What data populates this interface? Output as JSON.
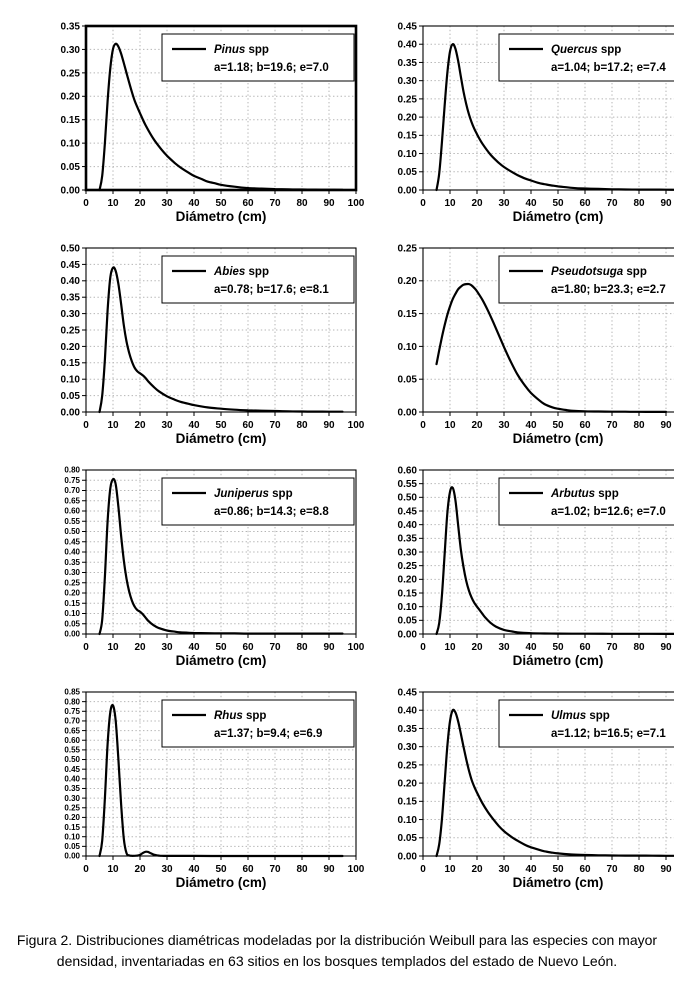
{
  "figure": {
    "caption": "Figura 2. Distribuciones diamétricas modeladas por la distribución Weibull para las especies con mayor densidad, inventariadas en 63 sitios en los bosques templados del estado de Nuevo León."
  },
  "chart_data": [
    {
      "type": "line",
      "species": "Pinus",
      "legend_suffix": "spp",
      "params": "a=1.18; b=19.6; e=7.0",
      "xlabel": "Diámetro (cm)",
      "ylabel": "",
      "xlim": [
        0,
        100
      ],
      "xtick_step": 10,
      "ylim": [
        0,
        0.35
      ],
      "ytick_step": 0.05,
      "grid": "dotted",
      "legend_position": "upper-right",
      "line_color": "#000000",
      "frame": "thick",
      "points": [
        [
          5,
          0
        ],
        [
          6,
          0.03
        ],
        [
          7,
          0.1
        ],
        [
          8,
          0.19
        ],
        [
          9,
          0.26
        ],
        [
          10,
          0.301
        ],
        [
          11,
          0.312
        ],
        [
          12,
          0.306
        ],
        [
          13,
          0.291
        ],
        [
          14,
          0.271
        ],
        [
          15,
          0.25
        ],
        [
          16,
          0.229
        ],
        [
          17,
          0.209
        ],
        [
          18,
          0.191
        ],
        [
          19,
          0.177
        ],
        [
          20,
          0.164
        ],
        [
          22,
          0.139
        ],
        [
          25,
          0.109
        ],
        [
          28,
          0.086
        ],
        [
          30,
          0.073
        ],
        [
          33,
          0.057
        ],
        [
          35,
          0.048
        ],
        [
          38,
          0.037
        ],
        [
          40,
          0.03
        ],
        [
          43,
          0.023
        ],
        [
          45,
          0.018
        ],
        [
          48,
          0.014
        ],
        [
          50,
          0.011
        ],
        [
          55,
          0.007
        ],
        [
          60,
          0.004
        ],
        [
          65,
          0.003
        ],
        [
          70,
          0.002
        ],
        [
          75,
          0.0015
        ],
        [
          80,
          0.001
        ],
        [
          85,
          0.0008
        ],
        [
          90,
          0.0006
        ],
        [
          95,
          0.0005
        ]
      ]
    },
    {
      "type": "line",
      "species": "Quercus",
      "legend_suffix": "spp",
      "params": "a=1.04; b=17.2; e=7.4",
      "xlabel": "Diámetro (cm)",
      "ylabel": "",
      "xlim": [
        0,
        100
      ],
      "xtick_step": 10,
      "ylim": [
        0,
        0.45
      ],
      "ytick_step": 0.05,
      "grid": "dotted",
      "legend_position": "upper-right",
      "line_color": "#000000",
      "frame": "thin",
      "points": [
        [
          5,
          0
        ],
        [
          6,
          0.045
        ],
        [
          7,
          0.13
        ],
        [
          8,
          0.23
        ],
        [
          9,
          0.32
        ],
        [
          10,
          0.38
        ],
        [
          11,
          0.4
        ],
        [
          12,
          0.388
        ],
        [
          13,
          0.355
        ],
        [
          14,
          0.312
        ],
        [
          15,
          0.27
        ],
        [
          16,
          0.236
        ],
        [
          17,
          0.208
        ],
        [
          18,
          0.186
        ],
        [
          19,
          0.168
        ],
        [
          20,
          0.153
        ],
        [
          22,
          0.127
        ],
        [
          25,
          0.097
        ],
        [
          28,
          0.075
        ],
        [
          30,
          0.063
        ],
        [
          33,
          0.049
        ],
        [
          35,
          0.041
        ],
        [
          38,
          0.031
        ],
        [
          40,
          0.026
        ],
        [
          43,
          0.019
        ],
        [
          45,
          0.016
        ],
        [
          48,
          0.012
        ],
        [
          50,
          0.01
        ],
        [
          55,
          0.006
        ],
        [
          60,
          0.004
        ],
        [
          65,
          0.003
        ],
        [
          70,
          0.002
        ],
        [
          75,
          0.0015
        ],
        [
          80,
          0.001
        ],
        [
          85,
          0.001
        ],
        [
          90,
          0.0008
        ],
        [
          95,
          0.0006
        ]
      ]
    },
    {
      "type": "line",
      "species": "Abies",
      "legend_suffix": "spp",
      "params": "a=0.78; b=17.6; e=8.1",
      "xlabel": "Diámetro (cm)",
      "ylabel": "",
      "xlim": [
        0,
        100
      ],
      "xtick_step": 10,
      "ylim": [
        0,
        0.5
      ],
      "ytick_step": 0.05,
      "grid": "dotted",
      "legend_position": "upper-right",
      "line_color": "#000000",
      "frame": "thin",
      "points": [
        [
          5,
          0
        ],
        [
          6,
          0.05
        ],
        [
          7,
          0.16
        ],
        [
          8,
          0.31
        ],
        [
          9,
          0.41
        ],
        [
          10,
          0.44
        ],
        [
          11,
          0.43
        ],
        [
          12,
          0.39
        ],
        [
          13,
          0.33
        ],
        [
          14,
          0.265
        ],
        [
          15,
          0.215
        ],
        [
          16,
          0.18
        ],
        [
          17,
          0.154
        ],
        [
          18,
          0.135
        ],
        [
          19,
          0.124
        ],
        [
          20,
          0.118
        ],
        [
          21,
          0.112
        ],
        [
          22,
          0.104
        ],
        [
          23,
          0.094
        ],
        [
          25,
          0.077
        ],
        [
          27,
          0.063
        ],
        [
          30,
          0.048
        ],
        [
          33,
          0.037
        ],
        [
          35,
          0.031
        ],
        [
          38,
          0.025
        ],
        [
          40,
          0.021
        ],
        [
          45,
          0.014
        ],
        [
          50,
          0.01
        ],
        [
          55,
          0.007
        ],
        [
          60,
          0.005
        ],
        [
          65,
          0.004
        ],
        [
          70,
          0.003
        ],
        [
          75,
          0.002
        ],
        [
          80,
          0.0015
        ],
        [
          85,
          0.0012
        ],
        [
          90,
          0.001
        ],
        [
          95,
          0.0008
        ]
      ]
    },
    {
      "type": "line",
      "species": "Pseudotsuga",
      "legend_suffix": "spp",
      "params": "a=1.80; b=23.3; e=2.7",
      "xlabel": "Diámetro (cm)",
      "ylabel": "",
      "xlim": [
        0,
        100
      ],
      "xtick_step": 10,
      "ylim": [
        0,
        0.25
      ],
      "ytick_step": 0.05,
      "grid": "dotted",
      "legend_position": "upper-right",
      "line_color": "#000000",
      "frame": "thin",
      "points": [
        [
          5,
          0.073
        ],
        [
          6,
          0.094
        ],
        [
          7,
          0.114
        ],
        [
          8,
          0.132
        ],
        [
          9,
          0.148
        ],
        [
          10,
          0.161
        ],
        [
          11,
          0.172
        ],
        [
          12,
          0.18
        ],
        [
          13,
          0.187
        ],
        [
          14,
          0.191
        ],
        [
          15,
          0.194
        ],
        [
          16,
          0.195
        ],
        [
          17,
          0.195
        ],
        [
          18,
          0.193
        ],
        [
          19,
          0.189
        ],
        [
          20,
          0.184
        ],
        [
          22,
          0.171
        ],
        [
          24,
          0.155
        ],
        [
          26,
          0.137
        ],
        [
          28,
          0.118
        ],
        [
          30,
          0.099
        ],
        [
          32,
          0.081
        ],
        [
          35,
          0.057
        ],
        [
          38,
          0.039
        ],
        [
          40,
          0.029
        ],
        [
          43,
          0.018
        ],
        [
          45,
          0.012
        ],
        [
          48,
          0.007
        ],
        [
          50,
          0.005
        ],
        [
          53,
          0.003
        ],
        [
          55,
          0.002
        ],
        [
          60,
          0.001
        ],
        [
          65,
          0.0007
        ],
        [
          70,
          0.0005
        ],
        [
          75,
          0.0004
        ],
        [
          80,
          0.0003
        ],
        [
          85,
          0.0002
        ],
        [
          90,
          0.0002
        ]
      ]
    },
    {
      "type": "line",
      "species": "Juniperus",
      "legend_suffix": "spp",
      "params": "a=0.86; b=14.3; e=8.8",
      "xlabel": "Diámetro (cm)",
      "ylabel": "",
      "xlim": [
        0,
        100
      ],
      "xtick_step": 10,
      "ylim": [
        0,
        0.8
      ],
      "ytick_step": 0.05,
      "grid": "dotted",
      "legend_position": "upper-right",
      "line_color": "#000000",
      "frame": "thin",
      "points": [
        [
          5,
          0
        ],
        [
          6,
          0.07
        ],
        [
          7,
          0.28
        ],
        [
          8,
          0.55
        ],
        [
          9,
          0.71
        ],
        [
          10,
          0.755
        ],
        [
          11,
          0.73
        ],
        [
          12,
          0.62
        ],
        [
          13,
          0.48
        ],
        [
          14,
          0.36
        ],
        [
          15,
          0.27
        ],
        [
          16,
          0.207
        ],
        [
          17,
          0.163
        ],
        [
          18,
          0.134
        ],
        [
          19,
          0.117
        ],
        [
          20,
          0.109
        ],
        [
          21,
          0.097
        ],
        [
          22,
          0.081
        ],
        [
          23,
          0.065
        ],
        [
          25,
          0.043
        ],
        [
          27,
          0.029
        ],
        [
          30,
          0.017
        ],
        [
          33,
          0.011
        ],
        [
          35,
          0.008
        ],
        [
          40,
          0.005
        ],
        [
          45,
          0.004
        ],
        [
          50,
          0.003
        ],
        [
          55,
          0.003
        ],
        [
          60,
          0.002
        ],
        [
          70,
          0.002
        ],
        [
          80,
          0.002
        ],
        [
          90,
          0.002
        ],
        [
          95,
          0.002
        ]
      ]
    },
    {
      "type": "line",
      "species": "Arbutus",
      "legend_suffix": "spp",
      "params": "a=1.02; b=12.6; e=7.0",
      "xlabel": "Diámetro (cm)",
      "ylabel": "",
      "xlim": [
        0,
        100
      ],
      "xtick_step": 10,
      "ylim": [
        0,
        0.6
      ],
      "ytick_step": 0.05,
      "grid": "dotted",
      "legend_position": "upper-right",
      "line_color": "#000000",
      "frame": "thin",
      "points": [
        [
          5,
          0
        ],
        [
          6,
          0.04
        ],
        [
          7,
          0.14
        ],
        [
          8,
          0.29
        ],
        [
          9,
          0.44
        ],
        [
          10,
          0.52
        ],
        [
          11,
          0.535
        ],
        [
          12,
          0.49
        ],
        [
          13,
          0.4
        ],
        [
          14,
          0.31
        ],
        [
          15,
          0.245
        ],
        [
          16,
          0.195
        ],
        [
          17,
          0.159
        ],
        [
          18,
          0.133
        ],
        [
          19,
          0.114
        ],
        [
          20,
          0.1
        ],
        [
          21,
          0.087
        ],
        [
          22,
          0.074
        ],
        [
          23,
          0.061
        ],
        [
          25,
          0.041
        ],
        [
          27,
          0.027
        ],
        [
          30,
          0.015
        ],
        [
          33,
          0.009
        ],
        [
          35,
          0.006
        ],
        [
          40,
          0.003
        ],
        [
          45,
          0.002
        ],
        [
          50,
          0.0015
        ],
        [
          55,
          0.0012
        ],
        [
          60,
          0.001
        ],
        [
          70,
          0.0008
        ],
        [
          80,
          0.0006
        ],
        [
          90,
          0.0005
        ],
        [
          95,
          0.0005
        ]
      ]
    },
    {
      "type": "line",
      "species": "Rhus",
      "legend_suffix": "spp",
      "params": "a=1.37; b=9.4; e=6.9",
      "xlabel": "Diámetro (cm)",
      "ylabel": "",
      "xlim": [
        0,
        100
      ],
      "xtick_step": 10,
      "ylim": [
        0,
        0.85
      ],
      "ytick_step": 0.05,
      "grid": "dotted",
      "legend_position": "upper-right",
      "line_color": "#000000",
      "frame": "thin",
      "points": [
        [
          5,
          0
        ],
        [
          6,
          0.08
        ],
        [
          7,
          0.3
        ],
        [
          8,
          0.58
        ],
        [
          9,
          0.745
        ],
        [
          10,
          0.78
        ],
        [
          11,
          0.7
        ],
        [
          12,
          0.5
        ],
        [
          13,
          0.27
        ],
        [
          14,
          0.09
        ],
        [
          15,
          0.015
        ],
        [
          16,
          0.003
        ],
        [
          17,
          0.001
        ],
        [
          18,
          0.001
        ],
        [
          19,
          0.002
        ],
        [
          20,
          0.006
        ],
        [
          21,
          0.015
        ],
        [
          22,
          0.022
        ],
        [
          23,
          0.021
        ],
        [
          24,
          0.014
        ],
        [
          25,
          0.008
        ],
        [
          26,
          0.004
        ],
        [
          27,
          0.002
        ],
        [
          28,
          0.001
        ],
        [
          30,
          0.0006
        ],
        [
          35,
          0.0004
        ],
        [
          40,
          0.0003
        ],
        [
          50,
          0.0002
        ],
        [
          60,
          0.0002
        ],
        [
          70,
          0.0002
        ],
        [
          80,
          0.0002
        ],
        [
          90,
          0.0002
        ],
        [
          95,
          0.0002
        ]
      ]
    },
    {
      "type": "line",
      "species": "Ulmus",
      "legend_suffix": "spp",
      "params": "a=1.12; b=16.5; e=7.1",
      "xlabel": "Diámetro (cm)",
      "ylabel": "",
      "xlim": [
        0,
        100
      ],
      "xtick_step": 10,
      "ylim": [
        0,
        0.45
      ],
      "ytick_step": 0.05,
      "grid": "dotted",
      "legend_position": "upper-right",
      "line_color": "#000000",
      "frame": "thin",
      "points": [
        [
          5,
          0
        ],
        [
          6,
          0.032
        ],
        [
          7,
          0.1
        ],
        [
          8,
          0.2
        ],
        [
          9,
          0.3
        ],
        [
          10,
          0.37
        ],
        [
          11,
          0.4
        ],
        [
          12,
          0.394
        ],
        [
          13,
          0.37
        ],
        [
          14,
          0.336
        ],
        [
          15,
          0.3
        ],
        [
          16,
          0.266
        ],
        [
          17,
          0.235
        ],
        [
          18,
          0.209
        ],
        [
          19,
          0.19
        ],
        [
          20,
          0.174
        ],
        [
          22,
          0.145
        ],
        [
          24,
          0.121
        ],
        [
          26,
          0.101
        ],
        [
          28,
          0.083
        ],
        [
          30,
          0.068
        ],
        [
          33,
          0.051
        ],
        [
          35,
          0.042
        ],
        [
          38,
          0.03
        ],
        [
          40,
          0.024
        ],
        [
          43,
          0.017
        ],
        [
          45,
          0.013
        ],
        [
          48,
          0.009
        ],
        [
          50,
          0.007
        ],
        [
          55,
          0.004
        ],
        [
          60,
          0.0028
        ],
        [
          65,
          0.002
        ],
        [
          70,
          0.0015
        ],
        [
          75,
          0.001
        ],
        [
          80,
          0.001
        ],
        [
          85,
          0.0008
        ],
        [
          90,
          0.0006
        ],
        [
          95,
          0.0005
        ]
      ]
    }
  ]
}
